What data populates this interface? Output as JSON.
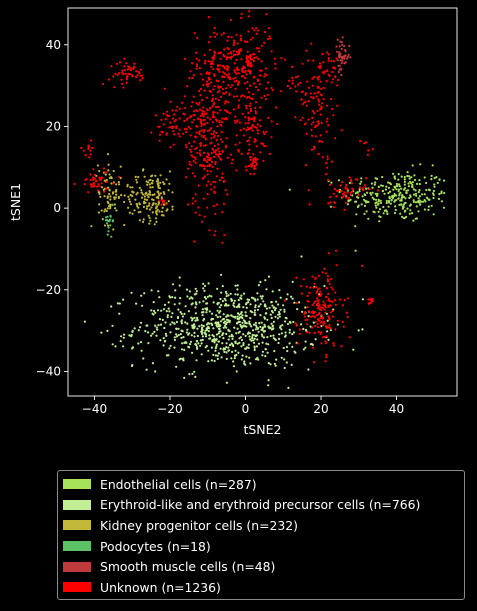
{
  "chart_data": {
    "type": "scatter",
    "title": "",
    "xlabel": "tSNE2",
    "ylabel": "tSNE1",
    "xlim": [
      -47,
      56
    ],
    "ylim": [
      -46,
      49
    ],
    "x_ticks": [
      -40,
      -20,
      0,
      20,
      40
    ],
    "y_ticks": [
      -40,
      -20,
      0,
      20,
      40
    ],
    "x_tick_labels": [
      "−40",
      "−20",
      "0",
      "20",
      "40"
    ],
    "y_tick_labels": [
      "−40",
      "−20",
      "0",
      "20",
      "40"
    ],
    "grid": false,
    "legend_position": "below",
    "series": [
      {
        "name": "Endothelial cells (n=287)",
        "color": "#a6e35a",
        "n": 287,
        "clusters": [
          {
            "cx": 40,
            "cy": 3,
            "sx": 7,
            "sy": 3.2,
            "n": 287
          }
        ]
      },
      {
        "name": "Erythroid-like and erythroid precursor cells (n=766)",
        "color": "#c2ef96",
        "n": 766,
        "clusters": [
          {
            "cx": -5,
            "cy": -29,
            "sx": 12,
            "sy": 5,
            "n": 766
          }
        ]
      },
      {
        "name": "Kidney progenitor cells (n=232)",
        "color": "#c2b83a",
        "n": 232,
        "clusters": [
          {
            "cx": -25,
            "cy": 3,
            "sx": 3.5,
            "sy": 3,
            "n": 160
          },
          {
            "cx": -36,
            "cy": 4,
            "sx": 1.5,
            "sy": 4,
            "n": 72
          }
        ]
      },
      {
        "name": "Podocytes (n=18)",
        "color": "#5dc165",
        "n": 18,
        "clusters": [
          {
            "cx": -36,
            "cy": -3,
            "sx": 0.6,
            "sy": 1.5,
            "n": 18
          }
        ]
      },
      {
        "name": "Smooth muscle cells (n=48)",
        "color": "#c0393c",
        "n": 48,
        "clusters": [
          {
            "cx": 25.5,
            "cy": 37,
            "sx": 1,
            "sy": 2,
            "n": 48
          }
        ]
      },
      {
        "name": "Unknown (n=1236)",
        "color": "#ff0000",
        "n": 1236,
        "clusters": [
          {
            "cx": -2,
            "cy": 35,
            "sx": 5,
            "sy": 5,
            "n": 270
          },
          {
            "cx": -10,
            "cy": 18,
            "sx": 3,
            "sy": 10,
            "n": 300
          },
          {
            "cx": -18,
            "cy": 21,
            "sx": 3,
            "sy": 3,
            "n": 60
          },
          {
            "cx": 2,
            "cy": 20,
            "sx": 2.5,
            "sy": 4,
            "n": 90
          },
          {
            "cx": 2,
            "cy": 11,
            "sx": 1,
            "sy": 1,
            "n": 25
          },
          {
            "cx": -31,
            "cy": 33,
            "sx": 2.5,
            "sy": 1.5,
            "n": 50
          },
          {
            "cx": 19,
            "cy": 25,
            "sx": 2.5,
            "sy": 7,
            "n": 110
          },
          {
            "cx": 23,
            "cy": 34,
            "sx": 1.5,
            "sy": 3,
            "n": 20
          },
          {
            "cx": 13,
            "cy": 31,
            "sx": 1,
            "sy": 1.5,
            "n": 12
          },
          {
            "cx": 20,
            "cy": -25,
            "sx": 3,
            "sy": 5,
            "n": 170
          },
          {
            "cx": 26,
            "cy": 4,
            "sx": 3,
            "sy": 1.8,
            "n": 55
          },
          {
            "cx": -39,
            "cy": 6.5,
            "sx": 2.5,
            "sy": 1.5,
            "n": 40
          },
          {
            "cx": -42,
            "cy": 14.5,
            "sx": 1,
            "sy": 1,
            "n": 12
          },
          {
            "cx": -22,
            "cy": 1.5,
            "sx": 0.5,
            "sy": 0.5,
            "n": 8
          },
          {
            "cx": 33,
            "cy": -23,
            "sx": 0.5,
            "sy": 0.5,
            "n": 8
          },
          {
            "cx": 32,
            "cy": 15,
            "sx": 0.8,
            "sy": 0.8,
            "n": 6
          }
        ]
      }
    ]
  }
}
